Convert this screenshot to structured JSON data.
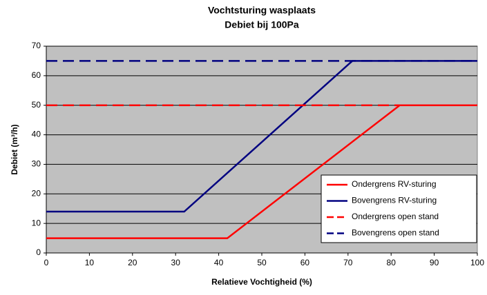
{
  "chart_data": {
    "type": "line",
    "title": "Vochtsturing wasplaats",
    "subtitle": "Debiet bij 100Pa",
    "x_label": "Relatieve Vochtigheid (%)",
    "y_label": "Debiet (m³/h)",
    "xlim": [
      0,
      100
    ],
    "xticks": [
      0,
      10,
      20,
      30,
      40,
      50,
      60,
      70,
      80,
      90,
      100
    ],
    "ylim": [
      0,
      70
    ],
    "yticks": [
      0,
      10,
      20,
      30,
      40,
      50,
      60,
      70
    ],
    "grid": true,
    "legend": "lower right",
    "series": [
      {
        "name": "Ondergrens RV-sturing",
        "color": "#ff0000",
        "dash": false,
        "x": [
          0,
          42,
          82,
          100
        ],
        "values": [
          5,
          5,
          50,
          50
        ]
      },
      {
        "name": "Bovengrens RV-sturing",
        "color": "#000080",
        "dash": false,
        "x": [
          0,
          32,
          71,
          100
        ],
        "values": [
          14,
          14,
          65,
          65
        ]
      },
      {
        "name": "Ondergrens open stand",
        "color": "#ff0000",
        "dash": true,
        "x": [
          0,
          100
        ],
        "values": [
          50,
          50
        ]
      },
      {
        "name": "Bovengrens open stand",
        "color": "#000080",
        "dash": true,
        "x": [
          0,
          100
        ],
        "values": [
          65,
          65
        ]
      }
    ]
  }
}
